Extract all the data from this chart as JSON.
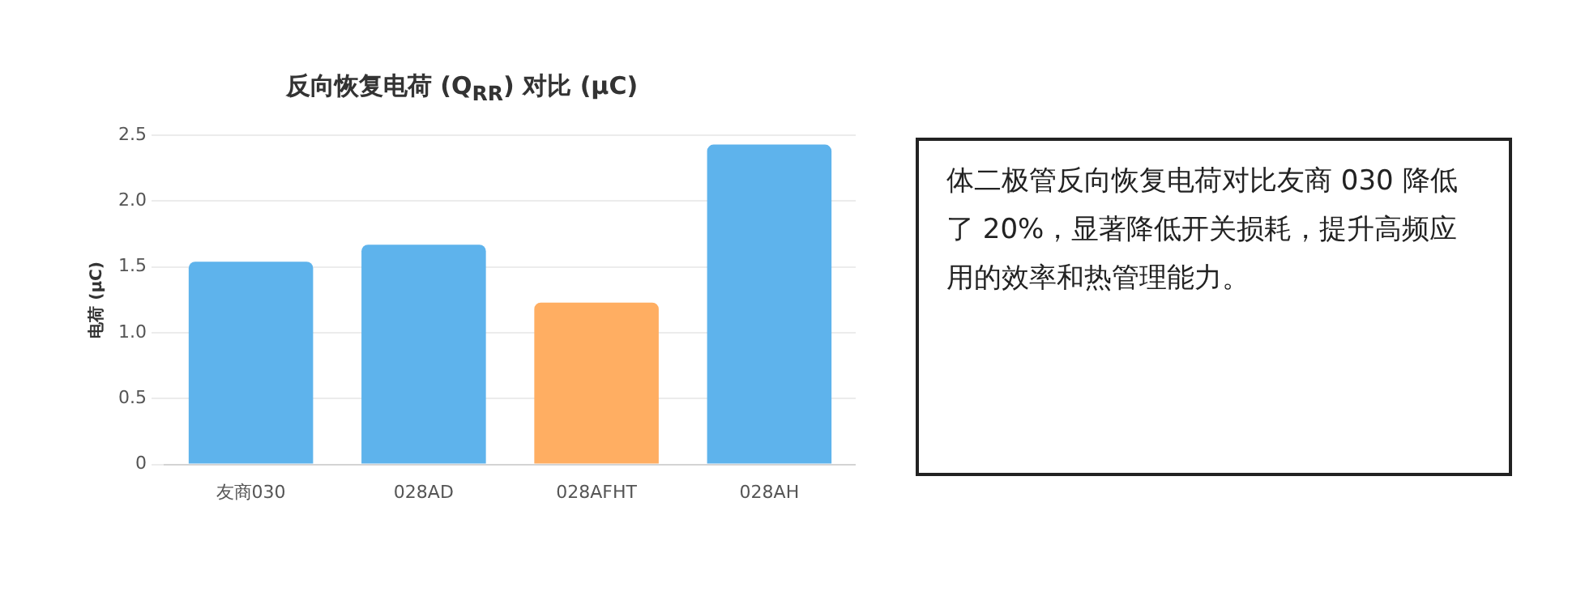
{
  "chart_data": {
    "type": "bar",
    "title": "反向恢复电荷 (Q$_{RR}$) 对比 (μC)",
    "ylabel": "电荷 (μC)",
    "categories": [
      "友商030",
      "028AD",
      "028AFHT",
      "028AH"
    ],
    "values": [
      1.54,
      1.67,
      1.23,
      2.43
    ],
    "colors": [
      "#5eb3ec",
      "#5eb3ec",
      "#ffae62",
      "#5eb3ec"
    ],
    "ylim": [
      0,
      2.5
    ],
    "yticks": [
      0,
      0.5,
      {
        "value": 1,
        "label": "1.0"
      },
      1.5,
      {
        "value": 2,
        "label": "2.0"
      },
      2.5
    ],
    "grid": "y",
    "legend": false,
    "annotations": [
      "体二极管反向恢复电荷对比友商 030 降低了 20%，显著降低开关损耗，提升高频应用的效率和热管理能力。"
    ]
  }
}
